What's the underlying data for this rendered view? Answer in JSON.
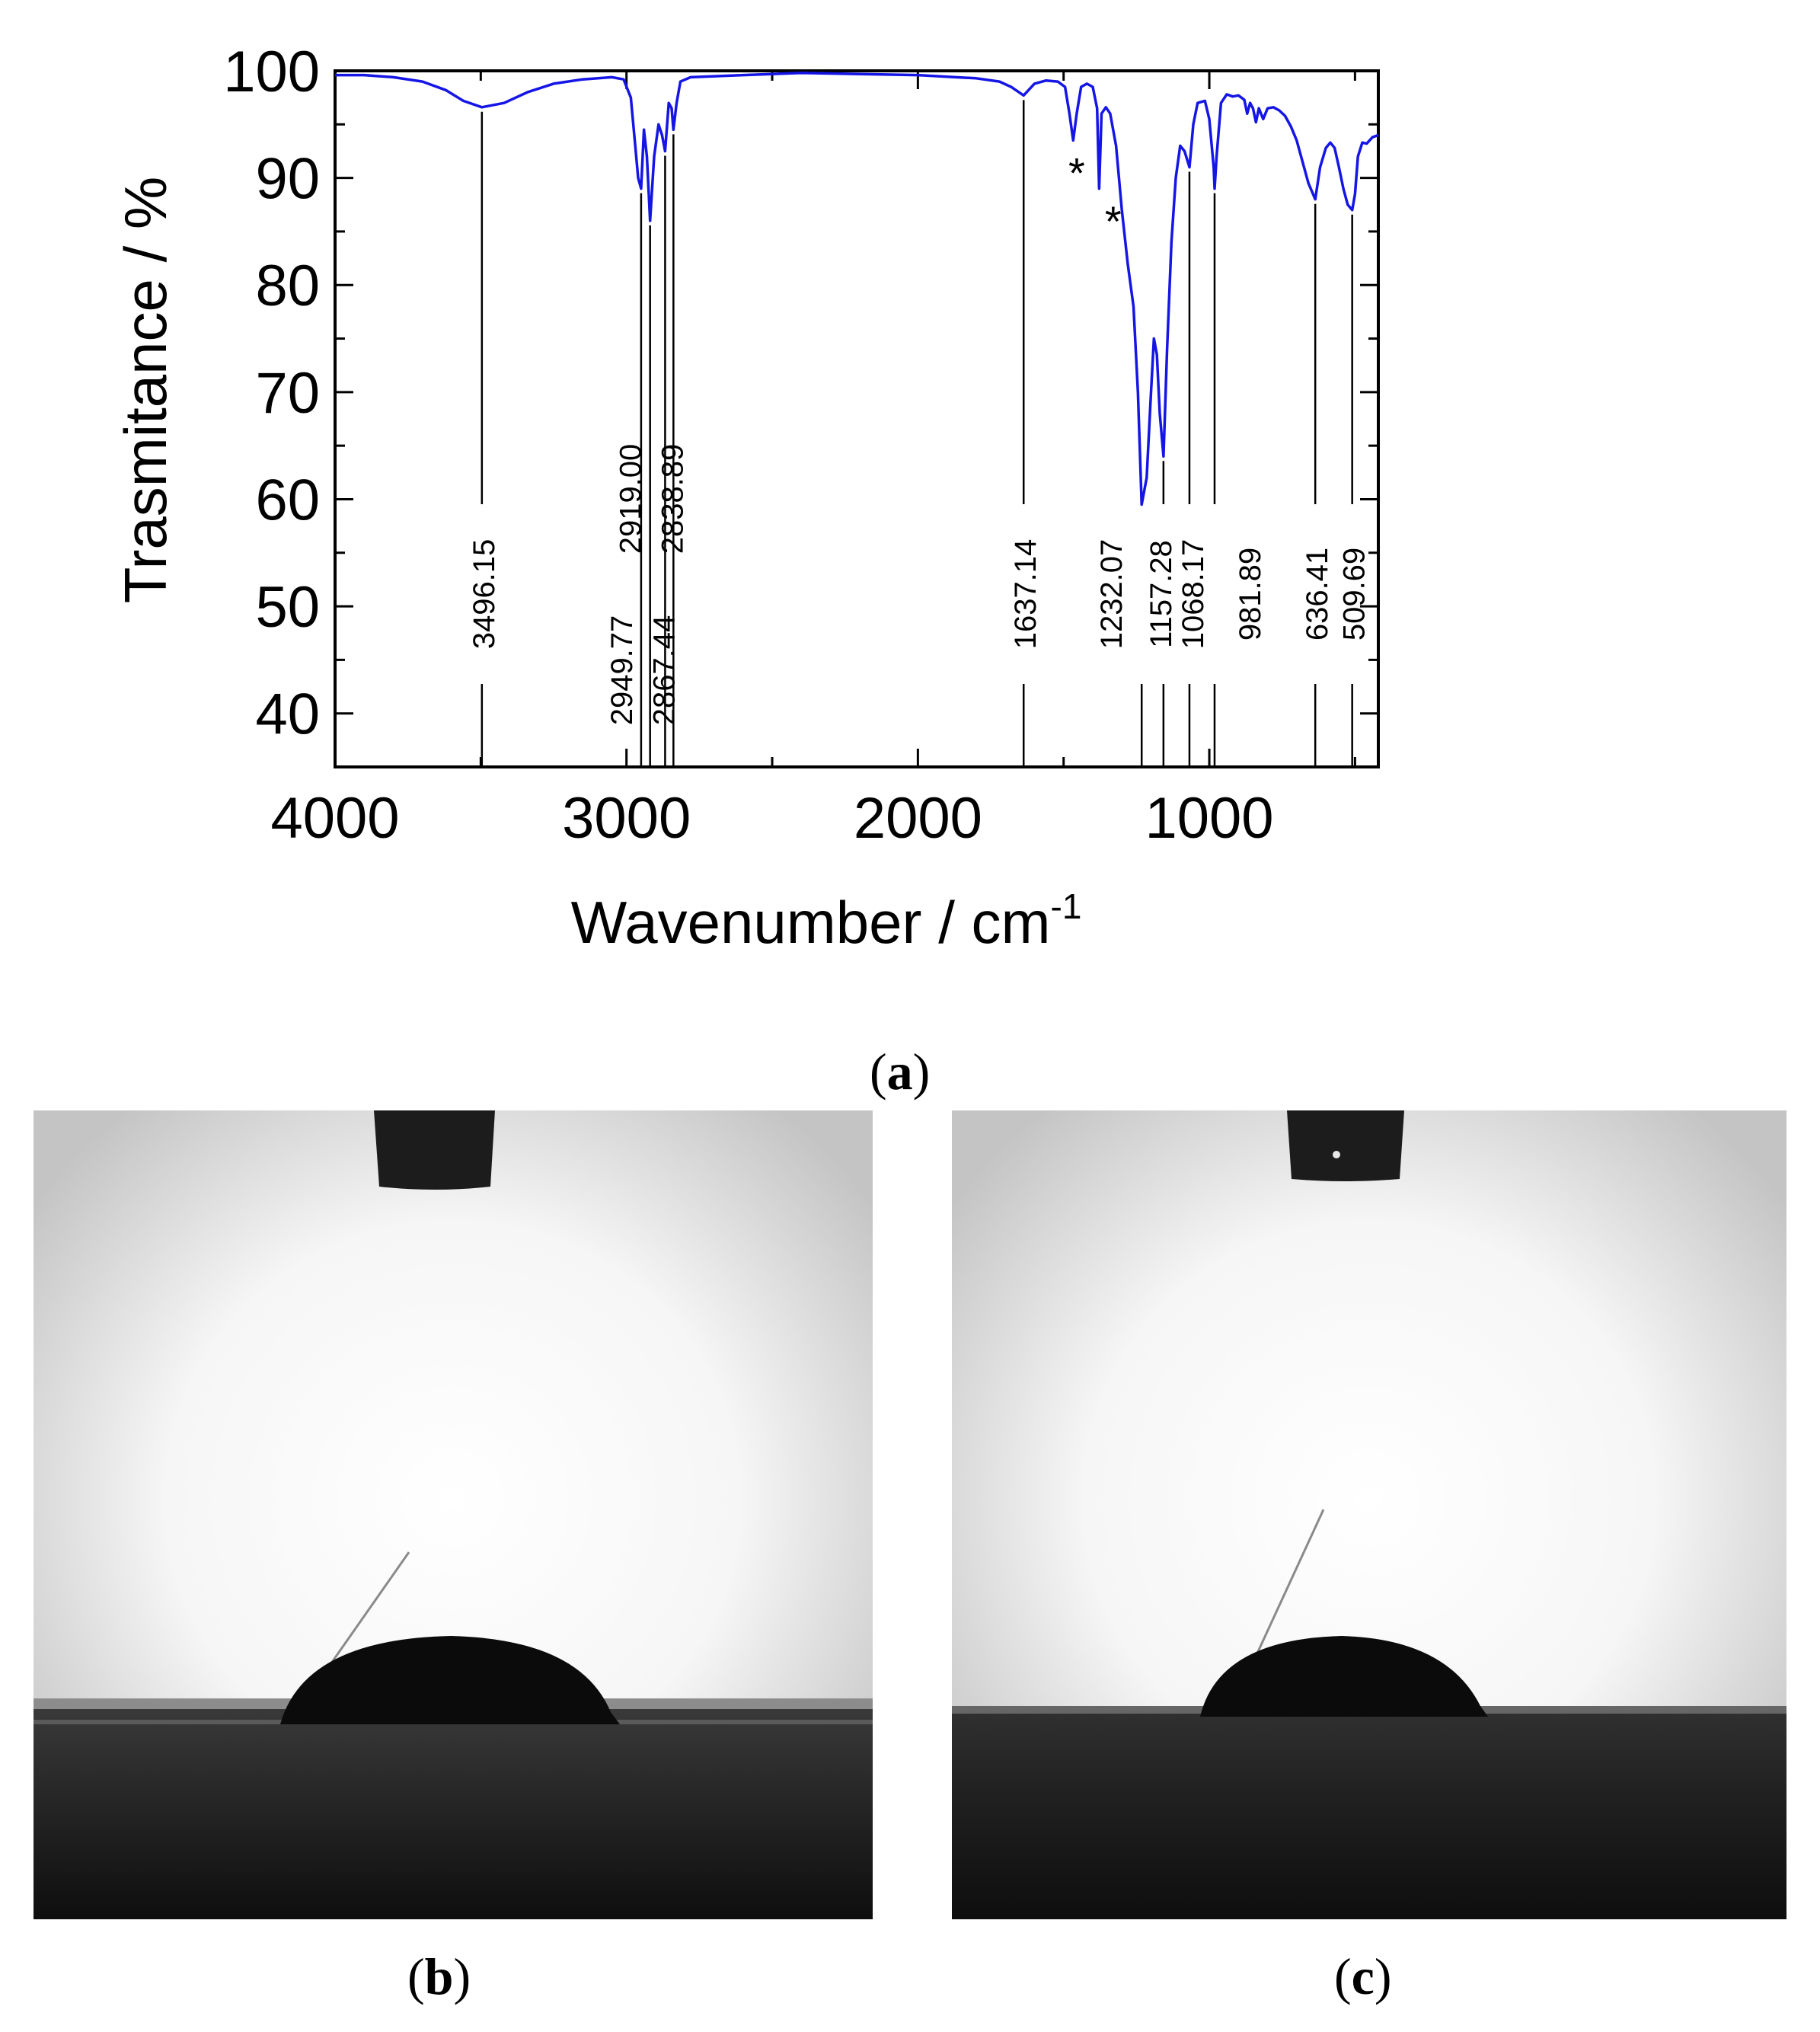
{
  "chart_data": {
    "type": "line",
    "xlabel": "Wavenumber / cm",
    "xlabel_sup": "-1",
    "ylabel": "Trasmitance / %",
    "xlim": [
      4000,
      420
    ],
    "ylim": [
      35,
      100
    ],
    "x_reversed": true,
    "x_ticks": [
      4000,
      3000,
      2000,
      1000
    ],
    "y_ticks": [
      40,
      50,
      60,
      70,
      80,
      90,
      100
    ],
    "grid": false,
    "line_color": "#1515e6",
    "series": [
      {
        "points": [
          [
            4000,
            99.6
          ],
          [
            3900,
            99.6
          ],
          [
            3800,
            99.4
          ],
          [
            3700,
            99.0
          ],
          [
            3620,
            98.2
          ],
          [
            3560,
            97.2
          ],
          [
            3496.15,
            96.6
          ],
          [
            3420,
            97.0
          ],
          [
            3340,
            98.0
          ],
          [
            3250,
            98.8
          ],
          [
            3150,
            99.2
          ],
          [
            3050,
            99.4
          ],
          [
            3010,
            99.2
          ],
          [
            2985,
            97.5
          ],
          [
            2970,
            93.0
          ],
          [
            2960,
            90.0
          ],
          [
            2949.77,
            89.0
          ],
          [
            2940,
            94.5
          ],
          [
            2930,
            92.0
          ],
          [
            2919.0,
            86.0
          ],
          [
            2905,
            92.0
          ],
          [
            2890,
            95.0
          ],
          [
            2878,
            94.0
          ],
          [
            2867.44,
            92.5
          ],
          [
            2855,
            97.0
          ],
          [
            2845,
            96.5
          ],
          [
            2838.89,
            94.5
          ],
          [
            2828,
            97.0
          ],
          [
            2815,
            99.0
          ],
          [
            2780,
            99.4
          ],
          [
            2600,
            99.6
          ],
          [
            2400,
            99.8
          ],
          [
            2200,
            99.7
          ],
          [
            2000,
            99.6
          ],
          [
            1800,
            99.3
          ],
          [
            1720,
            99.0
          ],
          [
            1680,
            98.5
          ],
          [
            1637.14,
            97.7
          ],
          [
            1600,
            98.8
          ],
          [
            1560,
            99.1
          ],
          [
            1520,
            99.0
          ],
          [
            1495,
            98.5
          ],
          [
            1480,
            96.0
          ],
          [
            1467,
            93.5
          ],
          [
            1455,
            96.0
          ],
          [
            1440,
            98.5
          ],
          [
            1420,
            98.8
          ],
          [
            1400,
            98.5
          ],
          [
            1385,
            96.5
          ],
          [
            1378,
            89.0
          ],
          [
            1370,
            96.0
          ],
          [
            1355,
            96.6
          ],
          [
            1340,
            96.0
          ],
          [
            1320,
            93.0
          ],
          [
            1300,
            87.0
          ],
          [
            1280,
            82.0
          ],
          [
            1260,
            78.0
          ],
          [
            1245,
            70.0
          ],
          [
            1232.07,
            59.5
          ],
          [
            1215,
            62.0
          ],
          [
            1200,
            70.0
          ],
          [
            1190,
            75.0
          ],
          [
            1180,
            73.5
          ],
          [
            1170,
            68.0
          ],
          [
            1157.28,
            64.0
          ],
          [
            1145,
            74.0
          ],
          [
            1130,
            84.0
          ],
          [
            1115,
            90.0
          ],
          [
            1100,
            93.0
          ],
          [
            1085,
            92.5
          ],
          [
            1068.17,
            91.0
          ],
          [
            1055,
            95.0
          ],
          [
            1040,
            97.0
          ],
          [
            1015,
            97.2
          ],
          [
            1000,
            95.5
          ],
          [
            985,
            91.0
          ],
          [
            981.89,
            89.0
          ],
          [
            975,
            92.0
          ],
          [
            960,
            97.0
          ],
          [
            940,
            97.8
          ],
          [
            920,
            97.6
          ],
          [
            900,
            97.7
          ],
          [
            880,
            97.3
          ],
          [
            870,
            96.0
          ],
          [
            860,
            97.0
          ],
          [
            850,
            96.5
          ],
          [
            840,
            95.2
          ],
          [
            830,
            96.5
          ],
          [
            815,
            95.5
          ],
          [
            800,
            96.5
          ],
          [
            780,
            96.6
          ],
          [
            760,
            96.3
          ],
          [
            740,
            95.8
          ],
          [
            720,
            94.8
          ],
          [
            700,
            93.5
          ],
          [
            680,
            91.5
          ],
          [
            660,
            89.5
          ],
          [
            636.41,
            88.0
          ],
          [
            620,
            91.0
          ],
          [
            600,
            92.8
          ],
          [
            585,
            93.3
          ],
          [
            570,
            92.8
          ],
          [
            555,
            91.0
          ],
          [
            540,
            89.0
          ],
          [
            525,
            87.5
          ],
          [
            509.69,
            87.0
          ],
          [
            500,
            88.5
          ],
          [
            490,
            92.0
          ],
          [
            475,
            93.3
          ],
          [
            460,
            93.2
          ],
          [
            440,
            93.8
          ],
          [
            420,
            94.0
          ]
        ]
      }
    ],
    "peak_labels": [
      {
        "x": 3496.15,
        "label": "3496.15",
        "y_top": 96.6
      },
      {
        "x": 2949.77,
        "label": "2949.77",
        "y_top": 89.0
      },
      {
        "x": 2919.0,
        "label": "2919.00",
        "y_top": 86.0
      },
      {
        "x": 2867.44,
        "label": "2867.44",
        "y_top": 92.5
      },
      {
        "x": 2838.89,
        "label": "2838.89",
        "y_top": 94.5
      },
      {
        "x": 1637.14,
        "label": "1637.14",
        "y_top": 97.7
      },
      {
        "x": 1232.07,
        "label": "1232.07",
        "y_top": 59.5
      },
      {
        "x": 1157.28,
        "label": "1157.28",
        "y_top": 64.0
      },
      {
        "x": 1068.17,
        "label": "1068.17",
        "y_top": 91.0
      },
      {
        "x": 981.89,
        "label": "981.89",
        "y_top": 89.0
      },
      {
        "x": 636.41,
        "label": "636.41",
        "y_top": 88.0
      },
      {
        "x": 509.69,
        "label": "509.69",
        "y_top": 87.0
      }
    ],
    "annotations": [
      {
        "text": "*",
        "x": 1455,
        "y": 90.5
      },
      {
        "text": "*",
        "x": 1330,
        "y": 86.0
      }
    ]
  },
  "panels": {
    "a": {
      "open": "(",
      "letter": "a",
      "close": ")"
    },
    "b": {
      "open": "(",
      "letter": "b",
      "close": ")"
    },
    "c": {
      "open": "(",
      "letter": "c",
      "close": ")"
    }
  }
}
